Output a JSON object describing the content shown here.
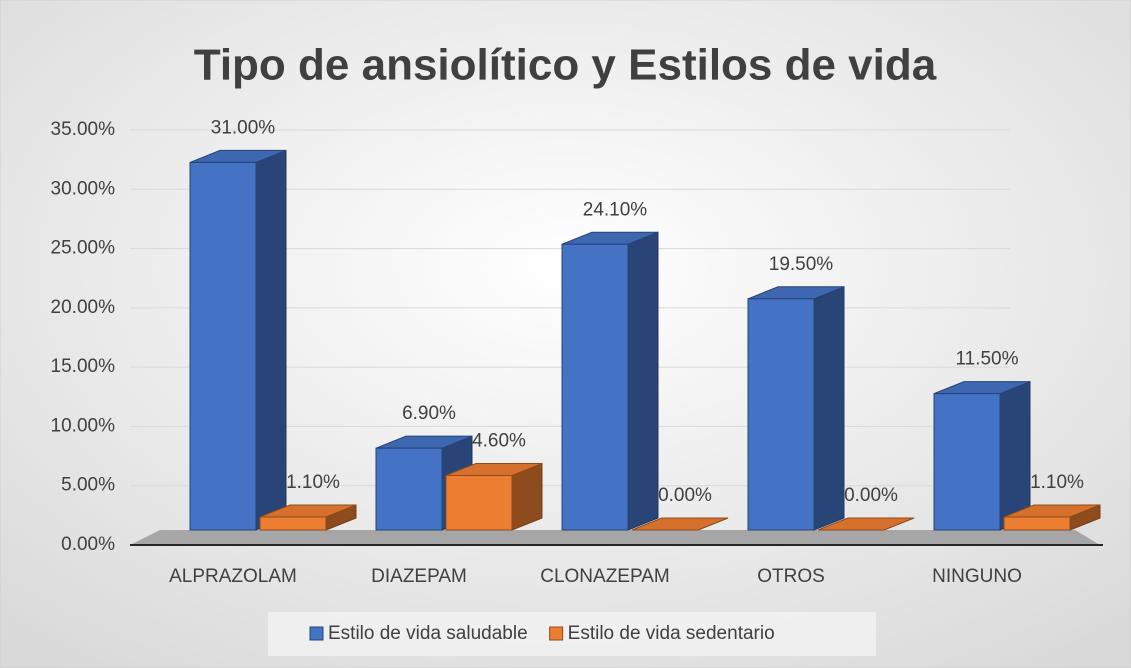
{
  "chart_data": {
    "type": "bar3d",
    "title": "Tipo de ansiolítico y Estilos de vida",
    "categories": [
      "ALPRAZOLAM",
      "DIAZEPAM",
      "CLONAZEPAM",
      "OTROS",
      "NINGUNO"
    ],
    "series": [
      {
        "name": "Estilo de vida saludable",
        "color": "#4472c4",
        "values": [
          31.0,
          6.9,
          24.1,
          19.5,
          11.5
        ],
        "value_labels": [
          "31.00%",
          "6.90%",
          "24.10%",
          "19.50%",
          "11.50%"
        ]
      },
      {
        "name": "Estilo de vida sedentario",
        "color": "#ed7d31",
        "values": [
          1.1,
          4.6,
          0.0,
          0.0,
          1.1
        ],
        "value_labels": [
          "1.10%",
          "4.60%",
          "0.00%",
          "0.00%",
          "1.10%"
        ]
      }
    ],
    "ylim": [
      0,
      35
    ],
    "yticks": [
      {
        "value": 0,
        "label": "0.00%"
      },
      {
        "value": 5,
        "label": "5.00%"
      },
      {
        "value": 10,
        "label": "10.00%"
      },
      {
        "value": 15,
        "label": "15.00%"
      },
      {
        "value": 20,
        "label": "20.00%"
      },
      {
        "value": 25,
        "label": "25.00%"
      },
      {
        "value": 30,
        "label": "30.00%"
      },
      {
        "value": 35,
        "label": "35.00%"
      }
    ],
    "grid": true,
    "legend": "bottom"
  }
}
